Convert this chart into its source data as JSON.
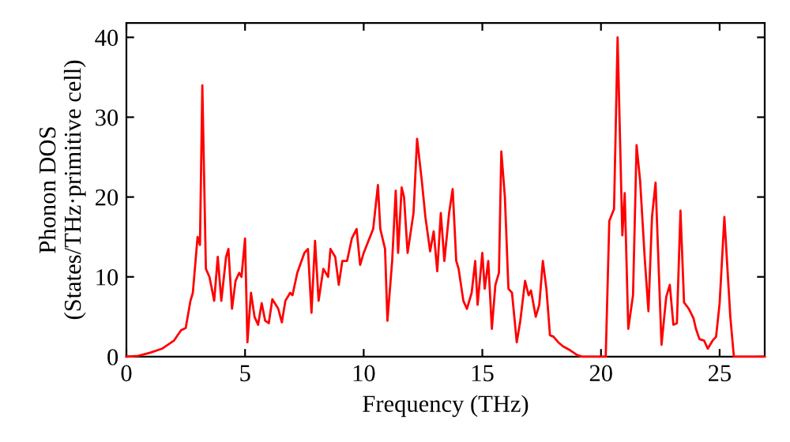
{
  "chart_data": {
    "type": "line",
    "xlabel": "Frequency (THz)",
    "ylabel": "Phonon DOS\n(States/THz·primitive cell)",
    "xlim": [
      0,
      26.9
    ],
    "ylim": [
      0,
      41.8
    ],
    "xticks": [
      0,
      5,
      10,
      15,
      20,
      25
    ],
    "yticks": [
      0,
      10,
      20,
      30,
      40
    ],
    "grid": false,
    "legend": false,
    "marker": "none",
    "line_style": "solid",
    "series": [
      {
        "color": "#ff0000",
        "x": [
          0,
          0.5,
          1,
          1.5,
          2,
          2.3,
          2.5,
          2.7,
          2.8,
          3.0,
          3.1,
          3.2,
          3.35,
          3.5,
          3.7,
          3.85,
          4.0,
          4.2,
          4.3,
          4.45,
          4.6,
          4.75,
          4.85,
          5.0,
          5.1,
          5.25,
          5.4,
          5.55,
          5.7,
          5.85,
          6.0,
          6.15,
          6.4,
          6.55,
          6.7,
          6.9,
          7.0,
          7.2,
          7.5,
          7.65,
          7.8,
          7.95,
          8.1,
          8.3,
          8.5,
          8.6,
          8.8,
          8.95,
          9.1,
          9.3,
          9.5,
          9.7,
          9.85,
          10.0,
          10.2,
          10.4,
          10.6,
          10.7,
          10.9,
          11.0,
          11.2,
          11.35,
          11.45,
          11.6,
          11.7,
          11.85,
          12.1,
          12.25,
          12.45,
          12.6,
          12.8,
          12.95,
          13.1,
          13.25,
          13.4,
          13.6,
          13.75,
          13.9,
          14.0,
          14.2,
          14.35,
          14.55,
          14.7,
          14.8,
          15.0,
          15.1,
          15.25,
          15.4,
          15.55,
          15.7,
          15.8,
          15.95,
          16.1,
          16.25,
          16.45,
          16.6,
          16.8,
          16.95,
          17.05,
          17.25,
          17.4,
          17.55,
          17.7,
          17.85,
          18.0,
          18.2,
          18.4,
          18.7,
          19.0,
          19.2,
          20.2,
          20.35,
          20.55,
          20.7,
          20.9,
          21.0,
          21.15,
          21.35,
          21.5,
          21.65,
          21.85,
          22.0,
          22.15,
          22.3,
          22.55,
          22.75,
          22.9,
          23.05,
          23.2,
          23.35,
          23.5,
          23.7,
          23.9,
          24.0,
          24.15,
          24.35,
          24.5,
          24.7,
          24.85,
          25.0,
          25.2,
          25.45,
          25.6,
          26.9
        ],
        "values": [
          0,
          0.1,
          0.5,
          1,
          2,
          3.3,
          3.6,
          7,
          8,
          15,
          14,
          34,
          11,
          10,
          7,
          12.5,
          7,
          12.5,
          13.5,
          6,
          9.5,
          10.5,
          10,
          14.8,
          1.8,
          8,
          5,
          4,
          6.7,
          4.5,
          4.2,
          7.2,
          6,
          4.3,
          7,
          8,
          7.7,
          10.5,
          13,
          13.5,
          5.5,
          14.5,
          7,
          11,
          10,
          13.5,
          12.5,
          9,
          12,
          12,
          14.8,
          16,
          11.5,
          13,
          14.5,
          16,
          21.5,
          16,
          13.5,
          4.5,
          12,
          20.8,
          13,
          21.2,
          20,
          13,
          18,
          27.3,
          22,
          17.5,
          13.2,
          15.7,
          10.7,
          18,
          12,
          18,
          21,
          12,
          11,
          7,
          6,
          8,
          12,
          6.5,
          13,
          8.5,
          12,
          3.5,
          9,
          10.5,
          25.7,
          20,
          8.5,
          8,
          1.8,
          4.5,
          9.5,
          7.7,
          8.3,
          5,
          6.5,
          12,
          8.5,
          2.7,
          2.5,
          1.8,
          1.3,
          0.8,
          0.2,
          0,
          0,
          17,
          18.5,
          40,
          15.2,
          20.5,
          3.5,
          7.7,
          26.5,
          22,
          12,
          5.7,
          17.5,
          21.8,
          1.5,
          7.5,
          9,
          4,
          4.2,
          18.3,
          6.8,
          6,
          4.8,
          3.5,
          2.2,
          2,
          1,
          2,
          2.5,
          6.7,
          17.5,
          5,
          0,
          0
        ]
      }
    ]
  }
}
